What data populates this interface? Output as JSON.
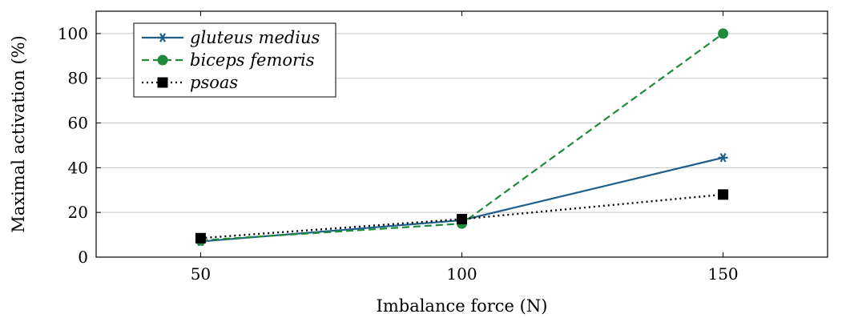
{
  "chart_data": {
    "type": "line",
    "title": "",
    "xlabel": "Imbalance force (N)",
    "ylabel": "Maximal activation (%)",
    "xlim": [
      30,
      170
    ],
    "ylim": [
      0,
      110
    ],
    "xticks": [
      50,
      100,
      150
    ],
    "yticks": [
      0,
      20,
      40,
      60,
      80,
      100
    ],
    "grid": "horizontal",
    "legend_position": "top-left",
    "series": [
      {
        "name": "gluteus medius",
        "x": [
          50,
          100,
          150
        ],
        "values": [
          7,
          16.5,
          44.5
        ],
        "color": "#1f5f8b",
        "line": "solid",
        "marker": "asterisk"
      },
      {
        "name": "biceps femoris",
        "x": [
          50,
          100,
          150
        ],
        "values": [
          7.5,
          15,
          100
        ],
        "color": "#1e8a3a",
        "line": "dashed",
        "marker": "circle"
      },
      {
        "name": "psoas",
        "x": [
          50,
          100,
          150
        ],
        "values": [
          8.5,
          17,
          28
        ],
        "color": "#000000",
        "line": "dotted",
        "marker": "square"
      }
    ]
  }
}
